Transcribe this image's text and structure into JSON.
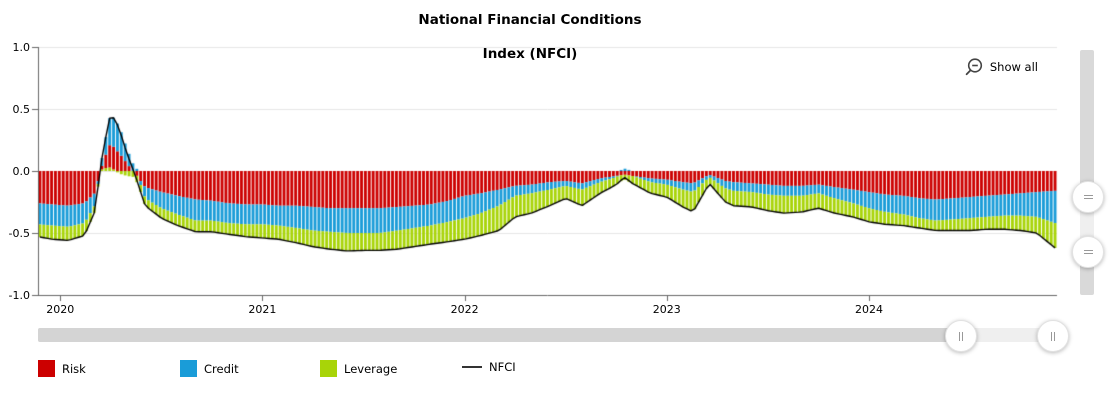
{
  "header": {
    "title_line1": "National Financial Conditions",
    "title_line2": "Index (NFCI)"
  },
  "controls": {
    "show_all_label": "Show all",
    "zoom_out_icon": "magnifier-minus",
    "v_slider_handle_icon": "horizontal-grip-lines",
    "h_slider_handle_icon": "vertical-grip-lines"
  },
  "legend": {
    "items": [
      {
        "label": "Risk",
        "color": "#cc0000",
        "type": "box"
      },
      {
        "label": "Credit",
        "color": "#1a9cd8",
        "type": "box"
      },
      {
        "label": "Leverage",
        "color": "#a8d408",
        "type": "box"
      },
      {
        "label": "NFCI",
        "color": "#333333",
        "type": "line"
      }
    ]
  },
  "chart_data": {
    "type": "bar",
    "subtype": "stacked-weekly-bars-with-line",
    "title": "National Financial Conditions Index (NFCI)",
    "xlabel": "",
    "ylabel": "",
    "x_range": [
      2019.89,
      2024.93
    ],
    "ylim": [
      -1.0,
      1.0
    ],
    "grid": true,
    "gridline_values": [
      1.0,
      0.5,
      0.0,
      -0.5
    ],
    "y_tick_values": [
      1.0,
      0.5,
      0.0,
      -0.5,
      -1.0
    ],
    "y_tick_labels": [
      "1.0",
      "0.5",
      "0.0",
      "-0.5",
      "-1.0"
    ],
    "x_tick_values": [
      2020,
      2021,
      2022,
      2023,
      2024
    ],
    "x_tick_labels": [
      "2020",
      "2021",
      "2022",
      "2023",
      "2024"
    ],
    "legend_position": "bottom",
    "colors": {
      "risk": "#cc0000",
      "credit": "#1a9cd8",
      "leverage": "#a8d408",
      "nfci_line": "#000000",
      "grid": "#e6e6e6",
      "axis": "#666666"
    },
    "x": [
      2019.89,
      2019.96,
      2020.04,
      2020.12,
      2020.17,
      2020.21,
      2020.25,
      2020.29,
      2020.33,
      2020.37,
      2020.42,
      2020.5,
      2020.58,
      2020.67,
      2020.75,
      2020.83,
      2020.92,
      2021.0,
      2021.08,
      2021.17,
      2021.25,
      2021.33,
      2021.42,
      2021.5,
      2021.58,
      2021.67,
      2021.75,
      2021.83,
      2021.92,
      2022.0,
      2022.08,
      2022.17,
      2022.25,
      2022.33,
      2022.42,
      2022.5,
      2022.58,
      2022.67,
      2022.75,
      2022.79,
      2022.83,
      2022.92,
      2023.0,
      2023.08,
      2023.13,
      2023.21,
      2023.29,
      2023.33,
      2023.42,
      2023.5,
      2023.58,
      2023.67,
      2023.75,
      2023.83,
      2023.92,
      2024.0,
      2024.08,
      2024.17,
      2024.25,
      2024.33,
      2024.42,
      2024.5,
      2024.58,
      2024.67,
      2024.75,
      2024.83,
      2024.92
    ],
    "series": [
      {
        "name": "Risk",
        "values": [
          -0.26,
          -0.27,
          -0.28,
          -0.26,
          -0.18,
          0.05,
          0.2,
          0.15,
          0.06,
          -0.02,
          -0.13,
          -0.17,
          -0.2,
          -0.23,
          -0.24,
          -0.26,
          -0.27,
          -0.27,
          -0.28,
          -0.28,
          -0.29,
          -0.3,
          -0.3,
          -0.3,
          -0.3,
          -0.29,
          -0.28,
          -0.27,
          -0.24,
          -0.2,
          -0.18,
          -0.15,
          -0.12,
          -0.11,
          -0.09,
          -0.08,
          -0.1,
          -0.06,
          -0.04,
          -0.03,
          -0.04,
          -0.06,
          -0.07,
          -0.09,
          -0.1,
          -0.03,
          -0.08,
          -0.09,
          -0.1,
          -0.11,
          -0.12,
          -0.12,
          -0.11,
          -0.13,
          -0.15,
          -0.17,
          -0.19,
          -0.2,
          -0.22,
          -0.23,
          -0.22,
          -0.21,
          -0.2,
          -0.19,
          -0.18,
          -0.17,
          -0.16
        ]
      },
      {
        "name": "Credit",
        "values": [
          -0.17,
          -0.17,
          -0.17,
          -0.16,
          -0.1,
          0.08,
          0.24,
          0.22,
          0.12,
          0.04,
          -0.09,
          -0.13,
          -0.15,
          -0.17,
          -0.16,
          -0.16,
          -0.16,
          -0.16,
          -0.16,
          -0.18,
          -0.19,
          -0.19,
          -0.2,
          -0.2,
          -0.2,
          -0.19,
          -0.18,
          -0.17,
          -0.17,
          -0.18,
          -0.16,
          -0.13,
          -0.08,
          -0.07,
          -0.06,
          -0.04,
          -0.05,
          -0.03,
          -0.01,
          0.02,
          0.0,
          -0.03,
          -0.04,
          -0.06,
          -0.07,
          -0.02,
          -0.06,
          -0.07,
          -0.07,
          -0.08,
          -0.08,
          -0.08,
          -0.07,
          -0.09,
          -0.11,
          -0.13,
          -0.14,
          -0.15,
          -0.16,
          -0.17,
          -0.17,
          -0.17,
          -0.17,
          -0.17,
          -0.18,
          -0.2,
          -0.26
        ]
      },
      {
        "name": "Leverage",
        "values": [
          -0.1,
          -0.11,
          -0.11,
          -0.1,
          -0.05,
          0.02,
          0.03,
          -0.02,
          -0.04,
          -0.05,
          -0.06,
          -0.08,
          -0.09,
          -0.09,
          -0.09,
          -0.09,
          -0.1,
          -0.11,
          -0.11,
          -0.12,
          -0.13,
          -0.14,
          -0.145,
          -0.14,
          -0.14,
          -0.15,
          -0.15,
          -0.15,
          -0.16,
          -0.17,
          -0.18,
          -0.2,
          -0.17,
          -0.16,
          -0.13,
          -0.1,
          -0.13,
          -0.09,
          -0.06,
          -0.04,
          -0.06,
          -0.09,
          -0.1,
          -0.14,
          -0.16,
          -0.05,
          -0.11,
          -0.12,
          -0.12,
          -0.13,
          -0.14,
          -0.13,
          -0.12,
          -0.12,
          -0.11,
          -0.11,
          -0.1,
          -0.09,
          -0.08,
          -0.08,
          -0.09,
          -0.1,
          -0.1,
          -0.11,
          -0.12,
          -0.13,
          -0.2
        ]
      },
      {
        "name": "NFCI",
        "type": "line",
        "derived": "sum-of-components"
      }
    ]
  }
}
